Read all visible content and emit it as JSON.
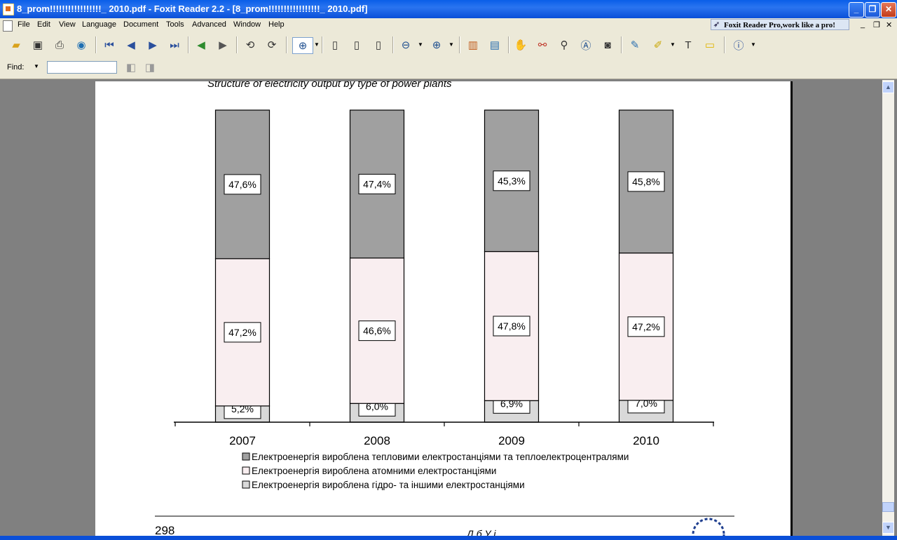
{
  "window": {
    "title": "8_prom!!!!!!!!!!!!!!!!!_ 2010.pdf - Foxit Reader 2.2 - [8_prom!!!!!!!!!!!!!!!!!_ 2010.pdf]",
    "minimize": "_",
    "restore": "❐",
    "close": "✕"
  },
  "menu": {
    "items": [
      "File",
      "Edit",
      "View",
      "Language",
      "Document",
      "Tools",
      "Advanced",
      "Window",
      "Help"
    ],
    "promo": "Foxit Reader Pro,work like a pro!",
    "mdi_minimize": "_",
    "mdi_restore": "❐",
    "mdi_close": "✕"
  },
  "toolbar": {
    "icons": [
      "open-icon",
      "save-icon",
      "print-icon",
      "email-icon",
      "first-page-icon",
      "prev-page-icon",
      "next-page-icon",
      "last-page-icon",
      "back-icon",
      "forward-icon",
      "rotate-left-icon",
      "rotate-right-icon",
      "zoom-in-icon",
      "actual-size-icon",
      "fit-page-icon",
      "fit-width-icon",
      "zoom-out-icon",
      "zoom-plus-icon",
      "bookmarks-icon",
      "thumbnails-icon",
      "hand-icon",
      "glasses-icon",
      "find-icon",
      "text-select-icon",
      "snapshot-icon",
      "comment-icon",
      "highlight-icon",
      "typewriter-icon",
      "note-icon",
      "info-icon"
    ]
  },
  "find": {
    "label": "Find:",
    "value": ""
  },
  "document": {
    "chart_caption": "Structure of electricity output by type of power plants",
    "page_number": "298",
    "footer_text": "Д                б              У   і"
  },
  "colors": {
    "thermal": "#a0a0a0",
    "nuclear": "#f9eef0",
    "hydro": "#d9d9d9"
  },
  "chart_data": {
    "type": "bar",
    "stacked": true,
    "categories": [
      "2007",
      "2008",
      "2009",
      "2010"
    ],
    "series": [
      {
        "name": "Електроенергія вироблена гідро- та іншими електростанціями",
        "values": [
          5.2,
          6.0,
          6.9,
          7.0
        ],
        "labels": [
          "5,2%",
          "6,0%",
          "6,9%",
          "7,0%"
        ]
      },
      {
        "name": "Електроенергія вироблена атомними електростанціями",
        "values": [
          47.2,
          46.6,
          47.8,
          47.2
        ],
        "labels": [
          "47,2%",
          "46,6%",
          "47,8%",
          "47,2%"
        ]
      },
      {
        "name": "Електроенергія вироблена тепловими електростанціями та теплоелектроцентралями",
        "values": [
          47.6,
          47.4,
          45.3,
          45.8
        ],
        "labels": [
          "47,6%",
          "47,4%",
          "45,3%",
          "45,8%"
        ]
      }
    ],
    "legend": [
      "Електроенергія вироблена тепловими електростанціями та теплоелектроцентралями",
      "Електроенергія вироблена атомними електростанціями",
      "Електроенергія вироблена гідро- та іншими електростанціями"
    ],
    "ylim": [
      0,
      100
    ],
    "grid": false,
    "legend_position": "bottom"
  }
}
